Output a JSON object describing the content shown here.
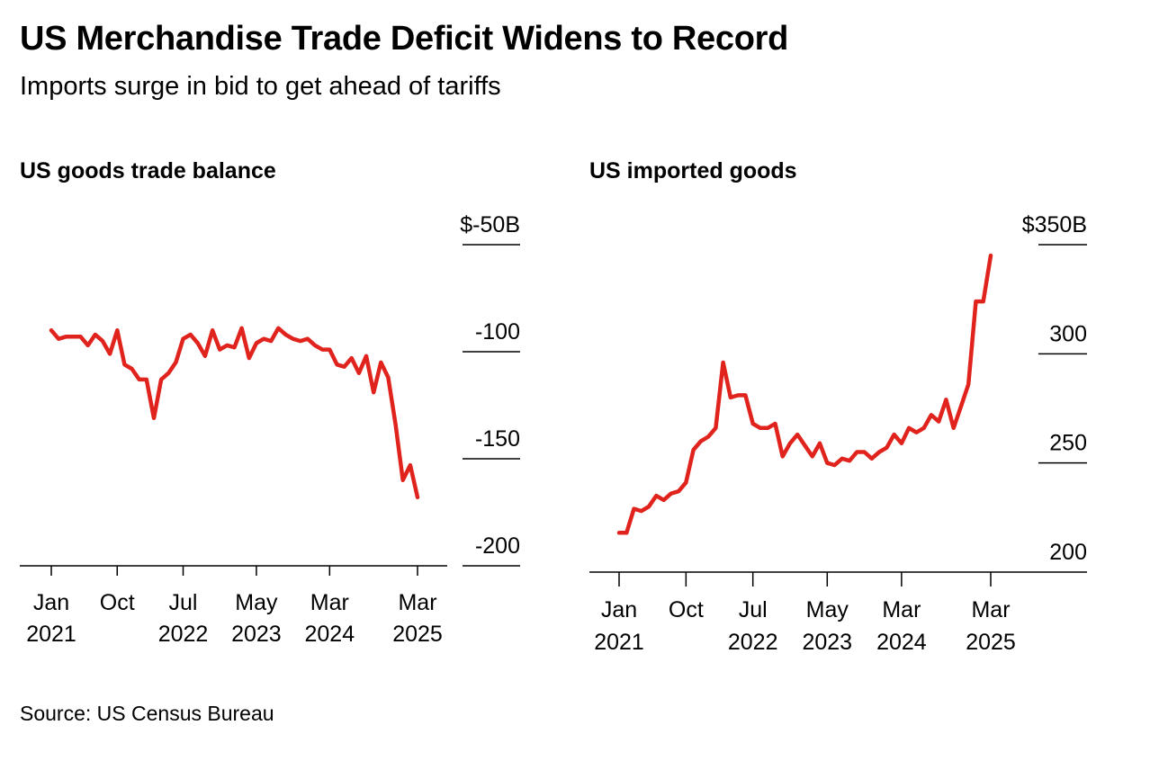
{
  "title": "US Merchandise Trade Deficit Widens to Record",
  "subtitle": "Imports surge in bid to get ahead of tariffs",
  "source": "Source: US Census Bureau",
  "line_color": "#e0231c",
  "chart_data": [
    {
      "type": "line",
      "title": "US goods trade balance",
      "unit": "$B",
      "ylim": [
        -200,
        -50
      ],
      "yticks": [
        -50,
        -100,
        -150,
        -200
      ],
      "ytick_labels": [
        "$-50B",
        "-100",
        "-150",
        "-200"
      ],
      "x_start": "Jan 2021",
      "xticks": [
        {
          "index": 0,
          "line1": "Jan",
          "line2": "2021"
        },
        {
          "index": 9,
          "line1": "Oct",
          "line2": ""
        },
        {
          "index": 18,
          "line1": "Jul",
          "line2": "2022"
        },
        {
          "index": 28,
          "line1": "May",
          "line2": "2023"
        },
        {
          "index": 38,
          "line1": "Mar",
          "line2": "2024"
        },
        {
          "index": 50,
          "line1": "Mar",
          "line2": "2025"
        }
      ],
      "xmax_index": 50,
      "series": [
        {
          "values": [
            -90,
            -94,
            -93,
            -93,
            -93,
            -97,
            -92,
            -95,
            -101,
            -90,
            -106,
            -108,
            -113,
            -113,
            -131,
            -113,
            -110,
            -105,
            -94,
            -92,
            -96,
            -102,
            -90,
            -99,
            -97,
            -98,
            -89,
            -103,
            -96,
            -94,
            -95,
            -89,
            -92,
            -94,
            -95,
            -94,
            -97,
            -99,
            -99,
            -106,
            -107,
            -103,
            -110,
            -102,
            -119,
            -105,
            -112,
            -134,
            -160,
            -153,
            -168
          ]
        }
      ]
    },
    {
      "type": "line",
      "title": "US imported goods",
      "unit": "$B",
      "ylim": [
        200,
        350
      ],
      "yticks": [
        350,
        300,
        250,
        200
      ],
      "ytick_labels": [
        "$350B",
        "300",
        "250",
        "200"
      ],
      "x_start": "Jan 2021",
      "xticks": [
        {
          "index": 0,
          "line1": "Jan",
          "line2": "2021"
        },
        {
          "index": 9,
          "line1": "Oct",
          "line2": ""
        },
        {
          "index": 18,
          "line1": "Jul",
          "line2": "2022"
        },
        {
          "index": 28,
          "line1": "May",
          "line2": "2023"
        },
        {
          "index": 38,
          "line1": "Mar",
          "line2": "2024"
        },
        {
          "index": 50,
          "line1": "Mar",
          "line2": "2025"
        }
      ],
      "xmax_index": 50,
      "series": [
        {
          "values": [
            218,
            218,
            229,
            228,
            230,
            235,
            233,
            236,
            237,
            241,
            256,
            260,
            262,
            266,
            296,
            280,
            281,
            281,
            268,
            266,
            266,
            268,
            253,
            259,
            263,
            258,
            253,
            259,
            250,
            249,
            252,
            251,
            255,
            255,
            252,
            255,
            257,
            263,
            259,
            266,
            264,
            266,
            272,
            269,
            279,
            266,
            276,
            286,
            324,
            324,
            345
          ]
        }
      ]
    }
  ]
}
